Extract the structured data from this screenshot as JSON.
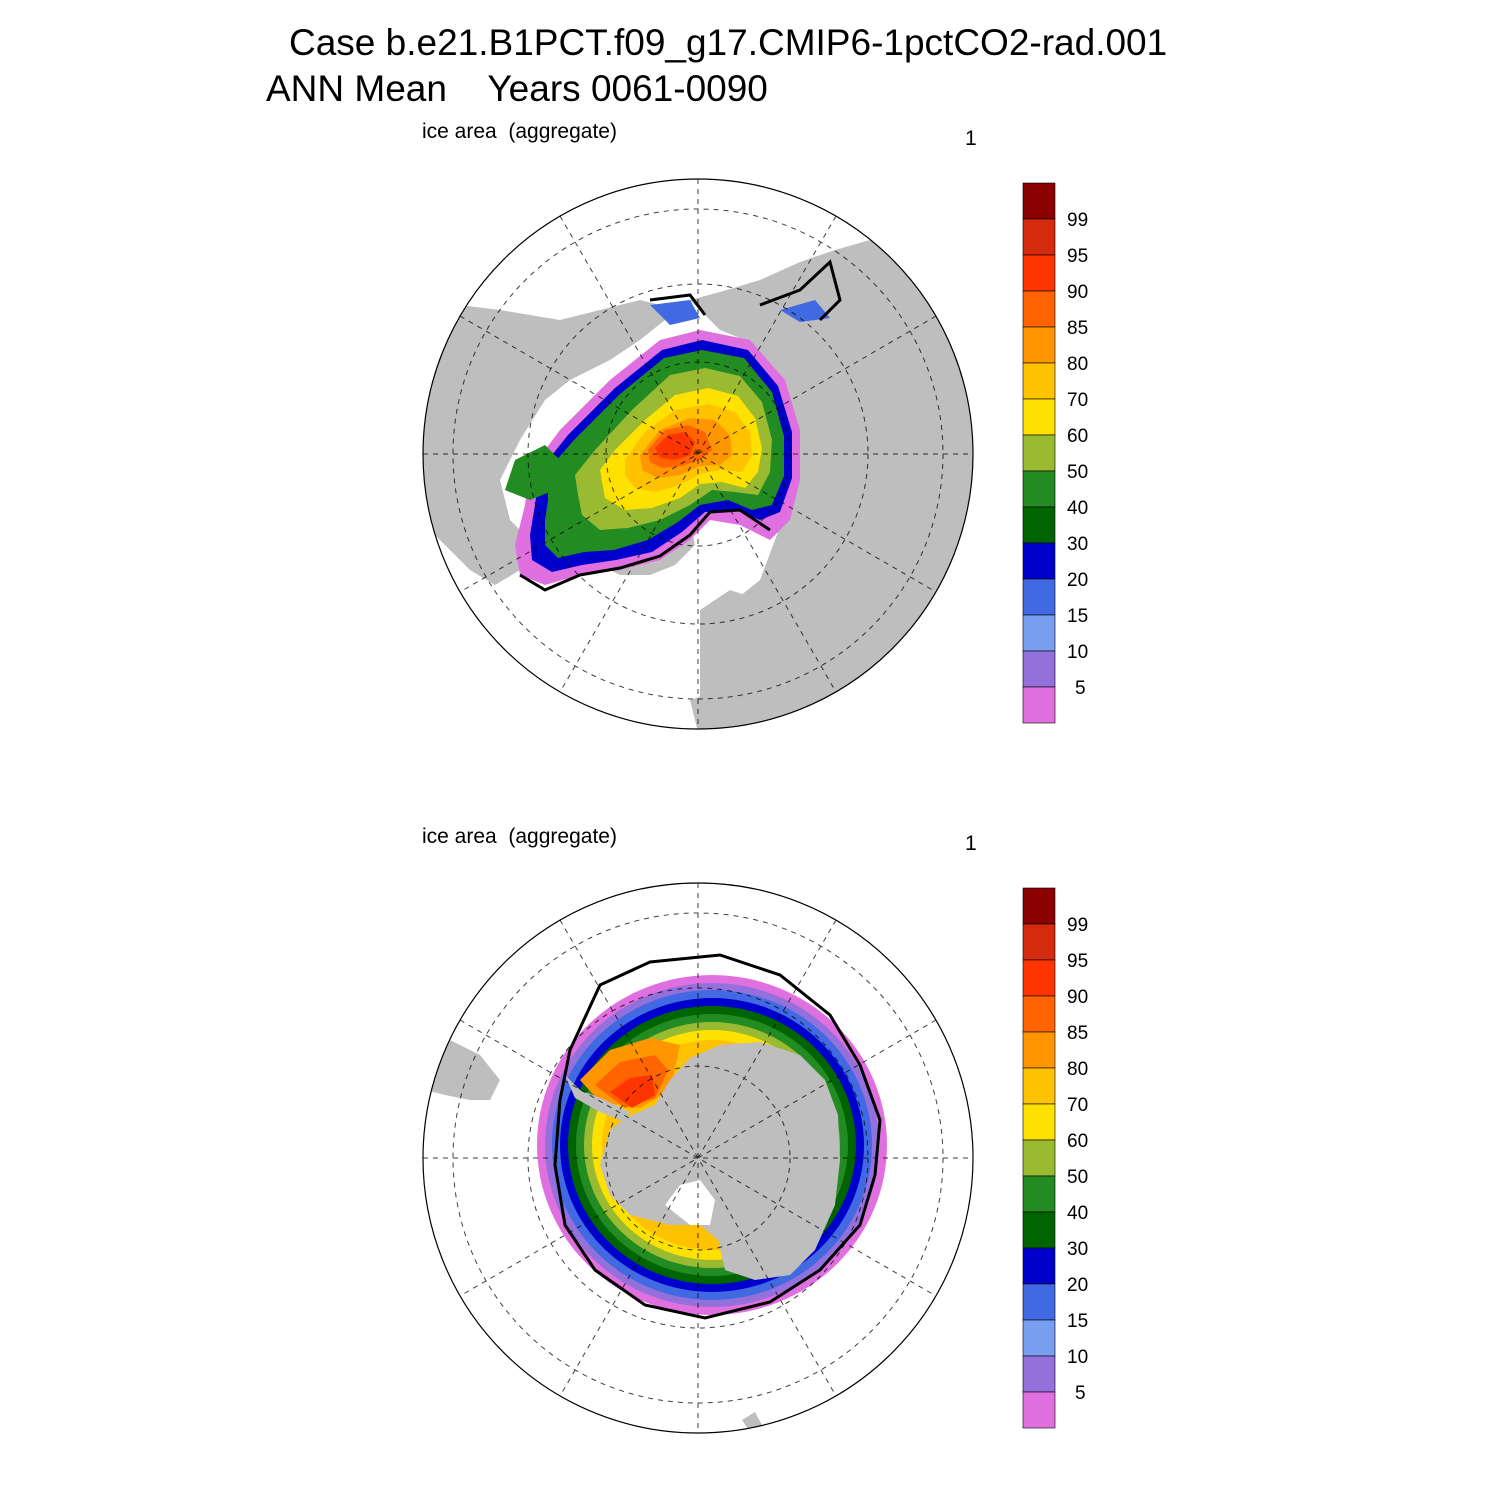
{
  "title_line1": "Case b.e21.B1PCT.f09_g17.CMIP6-1pctCO2-rad.001",
  "title_line2": "ANN Mean    Years 0061-0090",
  "panels": [
    {
      "hemisphere": "north",
      "label": "ice area  (aggregate)",
      "number": "1"
    },
    {
      "hemisphere": "south",
      "label": "ice area  (aggregate)",
      "number": "1"
    }
  ],
  "colorbar": {
    "levels": [
      "99",
      "95",
      "90",
      "85",
      "80",
      "70",
      "60",
      "50",
      "40",
      "30",
      "20",
      "15",
      "10",
      "5"
    ],
    "colors": [
      "#8b0000",
      "#d42a0e",
      "#ff3500",
      "#ff6400",
      "#ff9600",
      "#ffc200",
      "#ffe100",
      "#9aba32",
      "#228b22",
      "#006400",
      "#0000cd",
      "#4169e1",
      "#789ef2",
      "#9370db",
      "#e070e0"
    ]
  },
  "colors": {
    "land": "#bebebe",
    "ocean": "#ffffff",
    "grid": "#000000"
  }
}
